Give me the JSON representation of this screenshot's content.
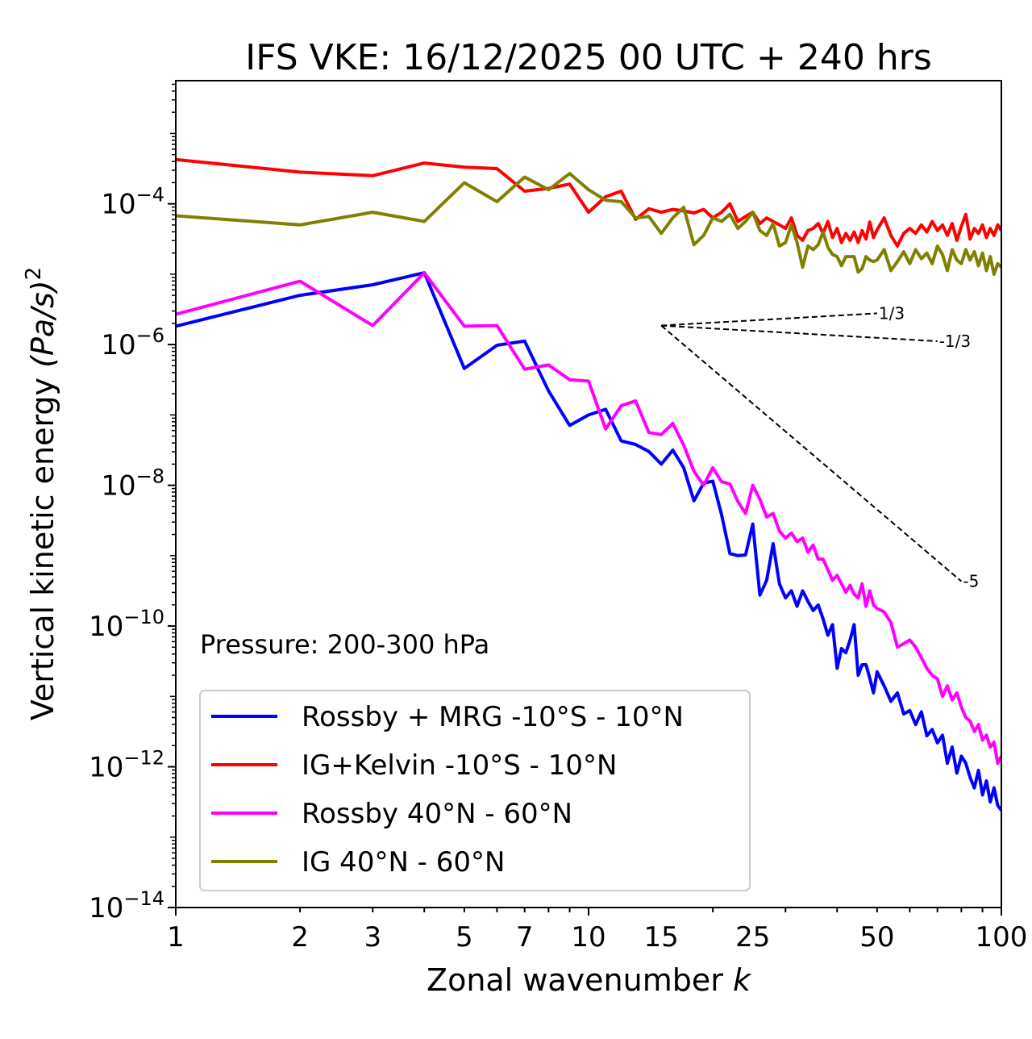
{
  "chart_data": {
    "type": "line",
    "title": "IFS VKE: 16/12/2025 00 UTC + 240 hrs",
    "xlabel": "Zonal wavenumber",
    "xlabel_var": "k",
    "ylabel": "Vertical kinetic energy",
    "ylabel_math": "(Pa/s)",
    "ylabel_sup": "2",
    "xscale": "log",
    "yscale": "log",
    "xlim": [
      1,
      100
    ],
    "ylim_exp": [
      -14,
      -2.25
    ],
    "x_ticks": [
      1,
      2,
      3,
      5,
      7,
      10,
      15,
      25,
      50,
      100
    ],
    "y_ticks": [
      {
        "base": "10",
        "exp": "−14",
        "value": -14
      },
      {
        "base": "10",
        "exp": "−12",
        "value": -12
      },
      {
        "base": "10",
        "exp": "−10",
        "value": -10
      },
      {
        "base": "10",
        "exp": "−8",
        "value": -8
      },
      {
        "base": "10",
        "exp": "−6",
        "value": -6
      },
      {
        "base": "10",
        "exp": "−4",
        "value": -4
      }
    ],
    "annotation": "Pressure: 200-300 hPa",
    "legend_position": "bottom-left",
    "slopes": [
      {
        "label": "1/3",
        "x0": 15,
        "y0_exp": -5.73,
        "x1": 50,
        "slope": 0.3333
      },
      {
        "label": "-1/3",
        "x0": 15,
        "y0_exp": -5.73,
        "x1": 70,
        "slope": -0.3333
      },
      {
        "label": "-5",
        "x0": 15,
        "y0_exp": -5.73,
        "x1": 80,
        "slope": -5
      }
    ],
    "series": [
      {
        "name": "Rossby + MRG -10°S - 10°N",
        "color": "#0000ff",
        "points": [
          [
            1,
            -5.74
          ],
          [
            2,
            -5.3
          ],
          [
            3,
            -5.15
          ],
          [
            4,
            -4.98
          ],
          [
            5,
            -6.34
          ],
          [
            6,
            -6.01
          ],
          [
            7,
            -5.95
          ],
          [
            8,
            -6.66
          ],
          [
            9,
            -7.15
          ],
          [
            10,
            -7.0
          ],
          [
            11,
            -6.92
          ],
          [
            12,
            -7.37
          ],
          [
            13,
            -7.42
          ],
          [
            14,
            -7.52
          ],
          [
            15,
            -7.7
          ],
          [
            16,
            -7.5
          ],
          [
            17,
            -7.75
          ],
          [
            18,
            -8.22
          ],
          [
            19,
            -7.97
          ],
          [
            20,
            -7.94
          ],
          [
            21,
            -8.42
          ],
          [
            22,
            -8.97
          ],
          [
            23,
            -9.0
          ],
          [
            24,
            -8.99
          ],
          [
            25,
            -8.55
          ],
          [
            26,
            -9.56
          ],
          [
            27,
            -9.35
          ],
          [
            28,
            -8.83
          ],
          [
            29,
            -9.4
          ],
          [
            30,
            -9.6
          ],
          [
            31,
            -9.5
          ],
          [
            32,
            -9.72
          ],
          [
            33,
            -9.5
          ],
          [
            34,
            -9.65
          ],
          [
            35,
            -9.78
          ],
          [
            36,
            -9.7
          ],
          [
            37,
            -9.9
          ],
          [
            38,
            -10.13
          ],
          [
            39,
            -9.98
          ],
          [
            40,
            -10.6
          ],
          [
            41,
            -10.32
          ],
          [
            42,
            -10.38
          ],
          [
            43,
            -10.2
          ],
          [
            44,
            -9.98
          ],
          [
            45,
            -10.7
          ],
          [
            46,
            -10.55
          ],
          [
            47,
            -10.55
          ],
          [
            48,
            -10.74
          ],
          [
            49,
            -10.95
          ],
          [
            50,
            -10.65
          ],
          [
            52,
            -10.85
          ],
          [
            54,
            -11.07
          ],
          [
            56,
            -10.95
          ],
          [
            58,
            -11.25
          ],
          [
            60,
            -11.2
          ],
          [
            62,
            -11.4
          ],
          [
            64,
            -11.22
          ],
          [
            66,
            -11.56
          ],
          [
            68,
            -11.47
          ],
          [
            70,
            -11.66
          ],
          [
            72,
            -11.55
          ],
          [
            74,
            -11.95
          ],
          [
            76,
            -11.72
          ],
          [
            78,
            -12.09
          ],
          [
            80,
            -11.85
          ],
          [
            82,
            -11.95
          ],
          [
            84,
            -12.15
          ],
          [
            86,
            -12.3
          ],
          [
            88,
            -12.05
          ],
          [
            90,
            -12.4
          ],
          [
            92,
            -12.2
          ],
          [
            94,
            -12.5
          ],
          [
            96,
            -12.3
          ],
          [
            98,
            -12.55
          ],
          [
            100,
            -12.62
          ]
        ]
      },
      {
        "name": "IG+Kelvin -10°S - 10°N",
        "color": "#ff0000",
        "points": [
          [
            1,
            -3.37
          ],
          [
            2,
            -3.55
          ],
          [
            3,
            -3.6
          ],
          [
            4,
            -3.42
          ],
          [
            5,
            -3.48
          ],
          [
            6,
            -3.5
          ],
          [
            7,
            -3.82
          ],
          [
            8,
            -3.78
          ],
          [
            9,
            -3.72
          ],
          [
            10,
            -4.12
          ],
          [
            11,
            -3.9
          ],
          [
            12,
            -3.82
          ],
          [
            13,
            -4.22
          ],
          [
            14,
            -4.07
          ],
          [
            15,
            -4.12
          ],
          [
            16,
            -4.08
          ],
          [
            17,
            -4.1
          ],
          [
            18,
            -4.13
          ],
          [
            19,
            -4.08
          ],
          [
            20,
            -4.2
          ],
          [
            21,
            -4.12
          ],
          [
            22,
            -4.0
          ],
          [
            23,
            -4.25
          ],
          [
            24,
            -4.18
          ],
          [
            25,
            -4.12
          ],
          [
            26,
            -4.28
          ],
          [
            27,
            -4.2
          ],
          [
            28,
            -4.25
          ],
          [
            29,
            -4.3
          ],
          [
            30,
            -4.35
          ],
          [
            31,
            -4.2
          ],
          [
            32,
            -4.45
          ],
          [
            33,
            -4.52
          ],
          [
            34,
            -4.38
          ],
          [
            35,
            -4.35
          ],
          [
            36,
            -4.28
          ],
          [
            37,
            -4.42
          ],
          [
            38,
            -4.25
          ],
          [
            39,
            -4.48
          ],
          [
            40,
            -4.35
          ],
          [
            41,
            -4.55
          ],
          [
            42,
            -4.42
          ],
          [
            43,
            -4.52
          ],
          [
            44,
            -4.4
          ],
          [
            45,
            -4.55
          ],
          [
            46,
            -4.38
          ],
          [
            47,
            -4.5
          ],
          [
            48,
            -4.26
          ],
          [
            49,
            -4.48
          ],
          [
            50,
            -4.37
          ],
          [
            52,
            -4.2
          ],
          [
            54,
            -4.45
          ],
          [
            56,
            -4.6
          ],
          [
            58,
            -4.42
          ],
          [
            60,
            -4.35
          ],
          [
            62,
            -4.42
          ],
          [
            64,
            -4.3
          ],
          [
            66,
            -4.4
          ],
          [
            68,
            -4.25
          ],
          [
            70,
            -4.38
          ],
          [
            72,
            -4.3
          ],
          [
            74,
            -4.45
          ],
          [
            76,
            -4.28
          ],
          [
            78,
            -4.52
          ],
          [
            80,
            -4.32
          ],
          [
            82,
            -4.15
          ],
          [
            84,
            -4.5
          ],
          [
            86,
            -4.35
          ],
          [
            88,
            -4.42
          ],
          [
            90,
            -4.3
          ],
          [
            92,
            -4.48
          ],
          [
            94,
            -4.35
          ],
          [
            96,
            -4.45
          ],
          [
            98,
            -4.3
          ],
          [
            100,
            -4.38
          ]
        ]
      },
      {
        "name": "Rossby 40°N - 60°N",
        "color": "#ff00ff",
        "points": [
          [
            1,
            -5.57
          ],
          [
            2,
            -5.1
          ],
          [
            3,
            -5.73
          ],
          [
            4,
            -4.98
          ],
          [
            5,
            -5.74
          ],
          [
            6,
            -5.73
          ],
          [
            7,
            -6.35
          ],
          [
            8,
            -6.29
          ],
          [
            9,
            -6.5
          ],
          [
            10,
            -6.52
          ],
          [
            11,
            -7.2
          ],
          [
            12,
            -6.87
          ],
          [
            13,
            -6.8
          ],
          [
            14,
            -7.25
          ],
          [
            15,
            -7.28
          ],
          [
            16,
            -7.12
          ],
          [
            17,
            -7.43
          ],
          [
            18,
            -7.8
          ],
          [
            19,
            -8.0
          ],
          [
            20,
            -7.75
          ],
          [
            21,
            -7.95
          ],
          [
            22,
            -7.98
          ],
          [
            23,
            -8.23
          ],
          [
            24,
            -8.4
          ],
          [
            25,
            -8.0
          ],
          [
            26,
            -8.2
          ],
          [
            27,
            -8.45
          ],
          [
            28,
            -8.4
          ],
          [
            29,
            -8.65
          ],
          [
            30,
            -8.75
          ],
          [
            31,
            -8.68
          ],
          [
            32,
            -8.8
          ],
          [
            33,
            -8.75
          ],
          [
            34,
            -8.95
          ],
          [
            35,
            -8.85
          ],
          [
            36,
            -9.05
          ],
          [
            37,
            -9.05
          ],
          [
            38,
            -9.2
          ],
          [
            39,
            -9.35
          ],
          [
            40,
            -9.28
          ],
          [
            41,
            -9.4
          ],
          [
            42,
            -9.52
          ],
          [
            43,
            -9.42
          ],
          [
            44,
            -9.55
          ],
          [
            45,
            -9.6
          ],
          [
            46,
            -9.4
          ],
          [
            47,
            -9.72
          ],
          [
            48,
            -9.5
          ],
          [
            49,
            -9.7
          ],
          [
            50,
            -9.75
          ],
          [
            52,
            -9.8
          ],
          [
            54,
            -9.95
          ],
          [
            56,
            -10.3
          ],
          [
            58,
            -10.25
          ],
          [
            60,
            -10.2
          ],
          [
            62,
            -10.3
          ],
          [
            64,
            -10.45
          ],
          [
            66,
            -10.6
          ],
          [
            68,
            -10.7
          ],
          [
            70,
            -10.75
          ],
          [
            72,
            -11.0
          ],
          [
            74,
            -10.85
          ],
          [
            76,
            -11.05
          ],
          [
            78,
            -10.95
          ],
          [
            80,
            -11.15
          ],
          [
            82,
            -11.3
          ],
          [
            84,
            -11.35
          ],
          [
            86,
            -11.5
          ],
          [
            88,
            -11.4
          ],
          [
            90,
            -11.62
          ],
          [
            92,
            -11.55
          ],
          [
            94,
            -11.72
          ],
          [
            96,
            -11.65
          ],
          [
            98,
            -11.95
          ],
          [
            100,
            -11.85
          ]
        ]
      },
      {
        "name": "IG 40°N - 60°N",
        "color": "#808000",
        "points": [
          [
            1,
            -4.17
          ],
          [
            2,
            -4.3
          ],
          [
            3,
            -4.12
          ],
          [
            4,
            -4.25
          ],
          [
            5,
            -3.7
          ],
          [
            6,
            -3.97
          ],
          [
            7,
            -3.62
          ],
          [
            8,
            -3.8
          ],
          [
            9,
            -3.57
          ],
          [
            10,
            -3.8
          ],
          [
            11,
            -3.95
          ],
          [
            12,
            -3.97
          ],
          [
            13,
            -4.2
          ],
          [
            14,
            -4.18
          ],
          [
            15,
            -4.42
          ],
          [
            16,
            -4.2
          ],
          [
            17,
            -4.05
          ],
          [
            18,
            -4.58
          ],
          [
            19,
            -4.45
          ],
          [
            20,
            -4.2
          ],
          [
            21,
            -4.25
          ],
          [
            22,
            -4.15
          ],
          [
            23,
            -4.35
          ],
          [
            24,
            -4.25
          ],
          [
            25,
            -4.12
          ],
          [
            26,
            -4.38
          ],
          [
            27,
            -4.45
          ],
          [
            28,
            -4.28
          ],
          [
            29,
            -4.6
          ],
          [
            30,
            -4.55
          ],
          [
            31,
            -4.3
          ],
          [
            32,
            -4.55
          ],
          [
            33,
            -4.9
          ],
          [
            34,
            -4.6
          ],
          [
            35,
            -4.65
          ],
          [
            36,
            -4.58
          ],
          [
            37,
            -4.4
          ],
          [
            38,
            -4.62
          ],
          [
            39,
            -4.72
          ],
          [
            40,
            -4.75
          ],
          [
            41,
            -4.88
          ],
          [
            42,
            -4.75
          ],
          [
            43,
            -4.75
          ],
          [
            44,
            -4.75
          ],
          [
            45,
            -4.97
          ],
          [
            46,
            -4.92
          ],
          [
            47,
            -4.75
          ],
          [
            48,
            -4.8
          ],
          [
            49,
            -4.82
          ],
          [
            50,
            -4.8
          ],
          [
            52,
            -4.65
          ],
          [
            54,
            -4.95
          ],
          [
            56,
            -4.82
          ],
          [
            58,
            -4.68
          ],
          [
            60,
            -4.85
          ],
          [
            62,
            -4.65
          ],
          [
            64,
            -4.78
          ],
          [
            66,
            -4.7
          ],
          [
            68,
            -4.85
          ],
          [
            70,
            -4.6
          ],
          [
            72,
            -4.72
          ],
          [
            74,
            -4.95
          ],
          [
            76,
            -4.65
          ],
          [
            78,
            -4.8
          ],
          [
            80,
            -4.85
          ],
          [
            82,
            -4.65
          ],
          [
            84,
            -4.8
          ],
          [
            86,
            -4.68
          ],
          [
            88,
            -4.88
          ],
          [
            90,
            -4.7
          ],
          [
            92,
            -4.95
          ],
          [
            94,
            -4.75
          ],
          [
            96,
            -5.0
          ],
          [
            98,
            -4.85
          ],
          [
            100,
            -4.9
          ]
        ]
      }
    ]
  }
}
